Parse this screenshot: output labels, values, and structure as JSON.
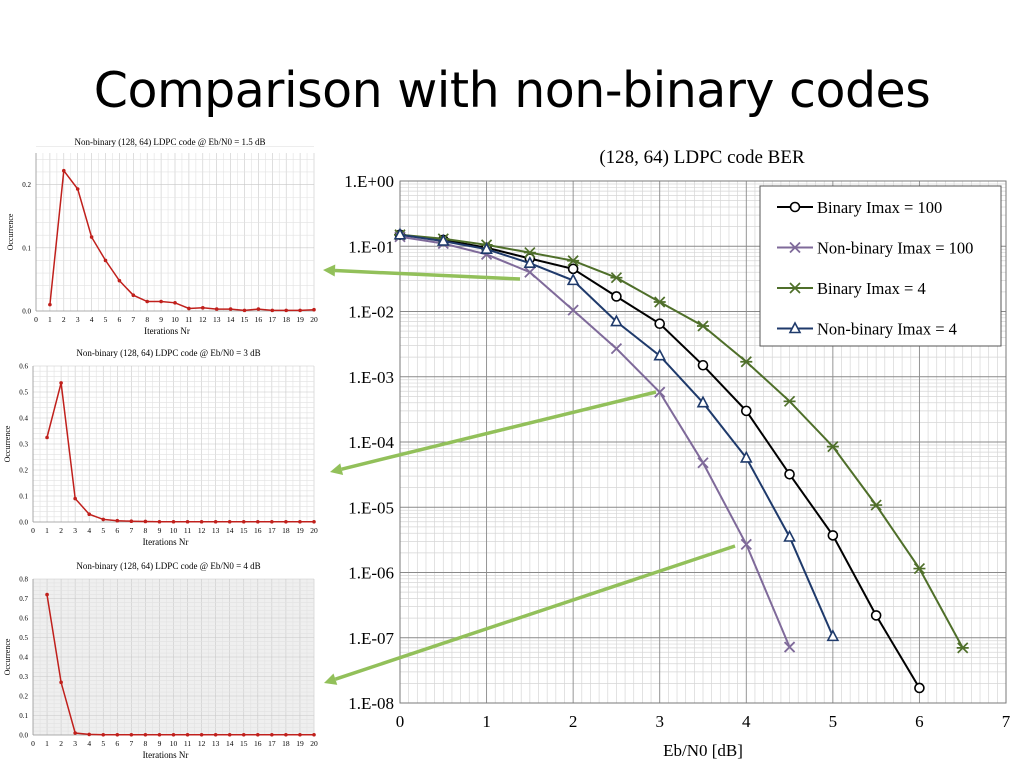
{
  "slide": {
    "title": "Comparison with non-binary codes"
  },
  "colors": {
    "binary_imax100": "#000000",
    "nonbinary_imax100": "#7f6a9a",
    "binary_imax4": "#4f6f2a",
    "nonbinary_imax4": "#1f3a6b",
    "small_series": "#c0201c",
    "arrow": "#92c05a"
  },
  "chart_data": [
    {
      "type": "line",
      "title": "(128, 64) LDPC code BER",
      "xlabel": "Eb/N0 [dB]",
      "ylabel": "",
      "yscale": "log",
      "xlim": [
        0,
        7
      ],
      "ylim": [
        1e-08,
        1
      ],
      "x_ticks": [
        "0",
        "1",
        "2",
        "3",
        "4",
        "5",
        "6",
        "7"
      ],
      "y_ticks": [
        "1.E+00",
        "1.E-01",
        "1.E-02",
        "1.E-03",
        "1.E-04",
        "1.E-05",
        "1.E-06",
        "1.E-07",
        "1.E-08"
      ],
      "grid": true,
      "legend": "top-right",
      "series": [
        {
          "name": "Binary Imax = 100",
          "marker": "circle",
          "x": [
            0,
            0.5,
            1,
            1.5,
            2,
            2.5,
            3,
            3.5,
            4,
            4.5,
            5,
            5.5,
            6
          ],
          "y": [
            0.15,
            0.125,
            0.095,
            0.065,
            0.045,
            0.017,
            0.0065,
            0.0015,
            0.0003,
            3.2e-05,
            3.7e-06,
            2.2e-07,
            1.7e-08
          ]
        },
        {
          "name": "Non-binary Imax = 100",
          "marker": "x",
          "x": [
            0,
            0.5,
            1,
            1.5,
            2,
            2.5,
            3,
            3.5,
            4,
            4.5
          ],
          "y": [
            0.14,
            0.11,
            0.075,
            0.04,
            0.0105,
            0.0027,
            0.00058,
            4.8e-05,
            2.7e-06,
            7.2e-08
          ]
        },
        {
          "name": "Binary Imax = 4",
          "marker": "star",
          "x": [
            0,
            0.5,
            1,
            1.5,
            2,
            2.5,
            3,
            3.5,
            4,
            4.5,
            5,
            5.5,
            6,
            6.5
          ],
          "y": [
            0.15,
            0.13,
            0.105,
            0.08,
            0.06,
            0.033,
            0.014,
            0.006,
            0.0017,
            0.00042,
            8.5e-05,
            1.08e-05,
            1.15e-06,
            7e-08
          ]
        },
        {
          "name": "Non-binary Imax = 4",
          "marker": "triangle",
          "x": [
            0,
            0.5,
            1,
            1.5,
            2,
            2.5,
            3,
            3.5,
            4,
            4.5,
            5
          ],
          "y": [
            0.15,
            0.12,
            0.09,
            0.055,
            0.03,
            0.007,
            0.0021,
            0.0004,
            5.7e-05,
            3.5e-06,
            1.05e-07
          ]
        }
      ]
    },
    {
      "type": "line",
      "title": "Non-binary (128, 64) LDPC code @ Eb/N0 = 1.5 dB",
      "xlabel": "Iterations Nr",
      "ylabel": "Occurrence",
      "xlim": [
        0,
        20
      ],
      "ylim": [
        0,
        0.25
      ],
      "x_ticks": [
        "0",
        "1",
        "2",
        "3",
        "4",
        "5",
        "6",
        "7",
        "8",
        "9",
        "10",
        "11",
        "12",
        "13",
        "14",
        "15",
        "16",
        "17",
        "18",
        "19",
        "20"
      ],
      "y_ticks": [
        "0.0",
        "0.1",
        "0.2"
      ],
      "y_tick_values": [
        0,
        0.1,
        0.2
      ],
      "grid": true,
      "series": [
        {
          "x": [
            1,
            2,
            3,
            4,
            5,
            6,
            7,
            8,
            9,
            10,
            11,
            12,
            13,
            14,
            15,
            16,
            17,
            18,
            19,
            20
          ],
          "y": [
            0.01,
            0.222,
            0.193,
            0.117,
            0.08,
            0.048,
            0.025,
            0.015,
            0.015,
            0.013,
            0.004,
            0.005,
            0.003,
            0.003,
            0.001,
            0.003,
            0.001,
            0.001,
            0.001,
            0.002
          ]
        }
      ]
    },
    {
      "type": "line",
      "title": "Non-binary (128, 64) LDPC code @ Eb/N0 = 3 dB",
      "xlabel": "Iterations Nr",
      "ylabel": "Occurrence",
      "xlim": [
        0,
        20
      ],
      "ylim": [
        0,
        0.6
      ],
      "x_ticks": [
        "0",
        "1",
        "2",
        "3",
        "4",
        "5",
        "6",
        "7",
        "8",
        "9",
        "10",
        "11",
        "12",
        "13",
        "14",
        "15",
        "16",
        "17",
        "18",
        "19",
        "20"
      ],
      "y_ticks": [
        "0.0",
        "0.1",
        "0.2",
        "0.3",
        "0.4",
        "0.5",
        "0.6"
      ],
      "y_tick_values": [
        0,
        0.1,
        0.2,
        0.3,
        0.4,
        0.5,
        0.6
      ],
      "grid": true,
      "series": [
        {
          "x": [
            1,
            2,
            3,
            4,
            5,
            6,
            7,
            8,
            9,
            10,
            11,
            12,
            13,
            14,
            15,
            16,
            17,
            18,
            19,
            20
          ],
          "y": [
            0.325,
            0.535,
            0.09,
            0.03,
            0.01,
            0.005,
            0.003,
            0.002,
            0.001,
            0.001,
            0.001,
            0.001,
            0.001,
            0.001,
            0.001,
            0.001,
            0.001,
            0.001,
            0.001,
            0.001
          ]
        }
      ]
    },
    {
      "type": "line",
      "title": "Non-binary (128, 64) LDPC code @ Eb/N0 = 4 dB",
      "xlabel": "Iterations Nr",
      "ylabel": "Occurrence",
      "xlim": [
        0,
        20
      ],
      "ylim": [
        0,
        0.8
      ],
      "x_ticks": [
        "0",
        "1",
        "2",
        "3",
        "4",
        "5",
        "6",
        "7",
        "8",
        "9",
        "10",
        "11",
        "12",
        "13",
        "14",
        "15",
        "16",
        "17",
        "18",
        "19",
        "20"
      ],
      "y_ticks": [
        "0.0",
        "0.1",
        "0.2",
        "0.3",
        "0.4",
        "0.5",
        "0.6",
        "0.7",
        "0.8"
      ],
      "y_tick_values": [
        0,
        0.1,
        0.2,
        0.3,
        0.4,
        0.5,
        0.6,
        0.7,
        0.8
      ],
      "grid": true,
      "series": [
        {
          "x": [
            1,
            2,
            3,
            4,
            5,
            6,
            7,
            8,
            9,
            10,
            11,
            12,
            13,
            14,
            15,
            16,
            17,
            18,
            19,
            20
          ],
          "y": [
            0.72,
            0.27,
            0.01,
            0.003,
            0.001,
            0.001,
            0.001,
            0.001,
            0.001,
            0.001,
            0.001,
            0.001,
            0.001,
            0.001,
            0.001,
            0.001,
            0.001,
            0.001,
            0.001,
            0.001
          ]
        }
      ]
    }
  ]
}
